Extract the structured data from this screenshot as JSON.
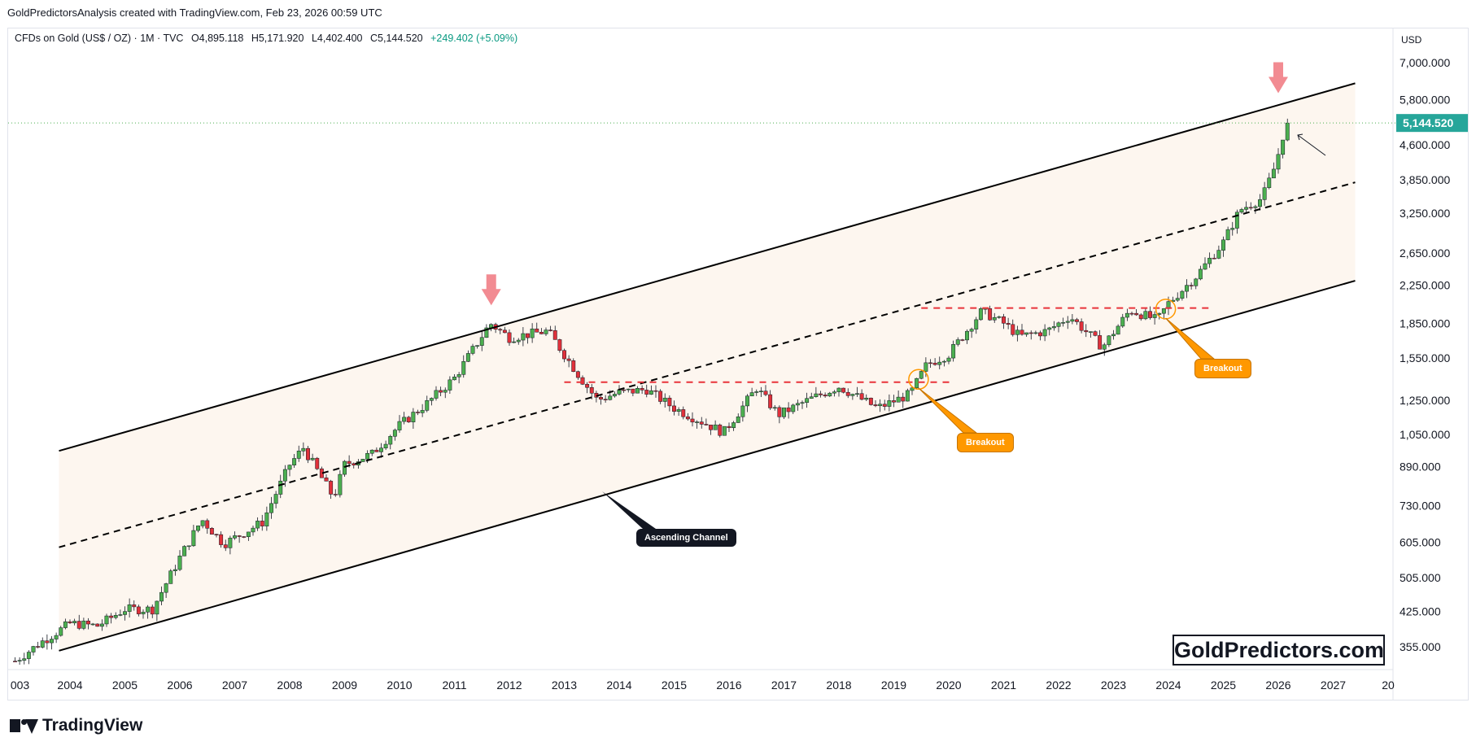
{
  "header": {
    "attribution": "GoldPredictorsAnalysis created with TradingView.com, Feb 23, 2026 00:59 UTC"
  },
  "legend": {
    "symbol": "CFDs on Gold (US$ / OZ) · 1M · TVC",
    "open": "O4,895.118",
    "high": "H5,171.920",
    "low": "L4,402.400",
    "close": "C5,144.520",
    "change": "+249.402 (+5.09%)",
    "change_color": "#089981"
  },
  "price_axis": {
    "currency": "USD",
    "current_price": "5,144.520",
    "current_price_color": "#26a69a"
  },
  "annotations": {
    "breakout_1": "Breakout",
    "breakout_2": "Breakout",
    "channel": "Ascending Channel",
    "watermark": "GoldPredictors.com"
  },
  "footer": {
    "brand": "TradingView"
  },
  "colors": {
    "up_candle": "#4caf50",
    "down_candle": "#e0313b",
    "channel_fill": "#fdf6ef",
    "resistance": "#e8333a",
    "arrow": "#f28b92",
    "callout_orange": "#ff9800"
  },
  "chart_data": {
    "type": "candlestick",
    "title": "",
    "xlabel": "",
    "ylabel": "",
    "scale": "log",
    "ylim": [
      300,
      8000
    ],
    "xlim": [
      2003.0,
      2027.75
    ],
    "x_ticks": [
      "003",
      "2004",
      "2005",
      "2006",
      "2007",
      "2008",
      "2009",
      "2010",
      "2011",
      "2012",
      "2013",
      "2014",
      "2015",
      "2016",
      "2017",
      "2018",
      "2019",
      "2020",
      "2021",
      "2022",
      "2023",
      "2024",
      "2025",
      "2026",
      "2027",
      "20"
    ],
    "y_ticks": [
      {
        "label": "7,000.000",
        "value": 7000
      },
      {
        "label": "5,800.000",
        "value": 5800
      },
      {
        "label": "4,600.000",
        "value": 4600
      },
      {
        "label": "3,850.000",
        "value": 3850
      },
      {
        "label": "3,250.000",
        "value": 3250
      },
      {
        "label": "2,650.000",
        "value": 2650
      },
      {
        "label": "2,250.000",
        "value": 2250
      },
      {
        "label": "1,850.000",
        "value": 1850
      },
      {
        "label": "1,550.000",
        "value": 1550
      },
      {
        "label": "1,250.000",
        "value": 1250
      },
      {
        "label": "1,050.000",
        "value": 1050
      },
      {
        "label": "890.000",
        "value": 890
      },
      {
        "label": "730.000",
        "value": 730
      },
      {
        "label": "605.000",
        "value": 605
      },
      {
        "label": "505.000",
        "value": 505
      },
      {
        "label": "425.000",
        "value": 425
      },
      {
        "label": "355.000",
        "value": 355
      }
    ],
    "price_path": [
      [
        2003.0,
        330
      ],
      [
        2003.5,
        365
      ],
      [
        2004.0,
        400
      ],
      [
        2004.5,
        395
      ],
      [
        2005.0,
        430
      ],
      [
        2005.5,
        430
      ],
      [
        2006.0,
        560
      ],
      [
        2006.4,
        680
      ],
      [
        2006.8,
        600
      ],
      [
        2007.5,
        670
      ],
      [
        2008.0,
        900
      ],
      [
        2008.25,
        980
      ],
      [
        2008.8,
        760
      ],
      [
        2009.0,
        900
      ],
      [
        2009.5,
        950
      ],
      [
        2010.0,
        1100
      ],
      [
        2010.5,
        1230
      ],
      [
        2011.0,
        1400
      ],
      [
        2011.65,
        1850
      ],
      [
        2012.0,
        1720
      ],
      [
        2012.7,
        1780
      ],
      [
        2013.3,
        1400
      ],
      [
        2013.6,
        1250
      ],
      [
        2014.0,
        1300
      ],
      [
        2014.5,
        1320
      ],
      [
        2015.0,
        1200
      ],
      [
        2015.9,
        1060
      ],
      [
        2016.5,
        1330
      ],
      [
        2016.9,
        1160
      ],
      [
        2017.5,
        1260
      ],
      [
        2018.0,
        1340
      ],
      [
        2018.7,
        1200
      ],
      [
        2019.3,
        1290
      ],
      [
        2019.6,
        1500
      ],
      [
        2020.0,
        1580
      ],
      [
        2020.6,
        1970
      ],
      [
        2021.0,
        1850
      ],
      [
        2021.3,
        1730
      ],
      [
        2021.8,
        1780
      ],
      [
        2022.2,
        1920
      ],
      [
        2022.8,
        1640
      ],
      [
        2023.3,
        1980
      ],
      [
        2023.8,
        1880
      ],
      [
        2024.0,
        2050
      ],
      [
        2024.5,
        2350
      ],
      [
        2025.0,
        2800
      ],
      [
        2025.3,
        3300
      ],
      [
        2025.7,
        3500
      ],
      [
        2025.9,
        4000
      ],
      [
        2026.05,
        4600
      ],
      [
        2026.13,
        5144.52
      ]
    ],
    "channel": {
      "upper": [
        [
          2003.8,
          965
        ],
        [
          2027.4,
          6300
        ]
      ],
      "lower": [
        [
          2003.8,
          348
        ],
        [
          2027.4,
          2300
        ]
      ],
      "mid": [
        [
          2003.8,
          590
        ],
        [
          2027.4,
          3800
        ]
      ]
    },
    "resistance_levels": [
      {
        "value": 1370,
        "from": 2013.0,
        "to": 2020.1
      },
      {
        "value": 2000,
        "from": 2019.5,
        "to": 2024.8
      }
    ],
    "peak_markers": [
      {
        "x": 2011.67,
        "value": 2150
      },
      {
        "x": 2026.0,
        "value": 6350
      }
    ],
    "current_price": 5144.52
  }
}
